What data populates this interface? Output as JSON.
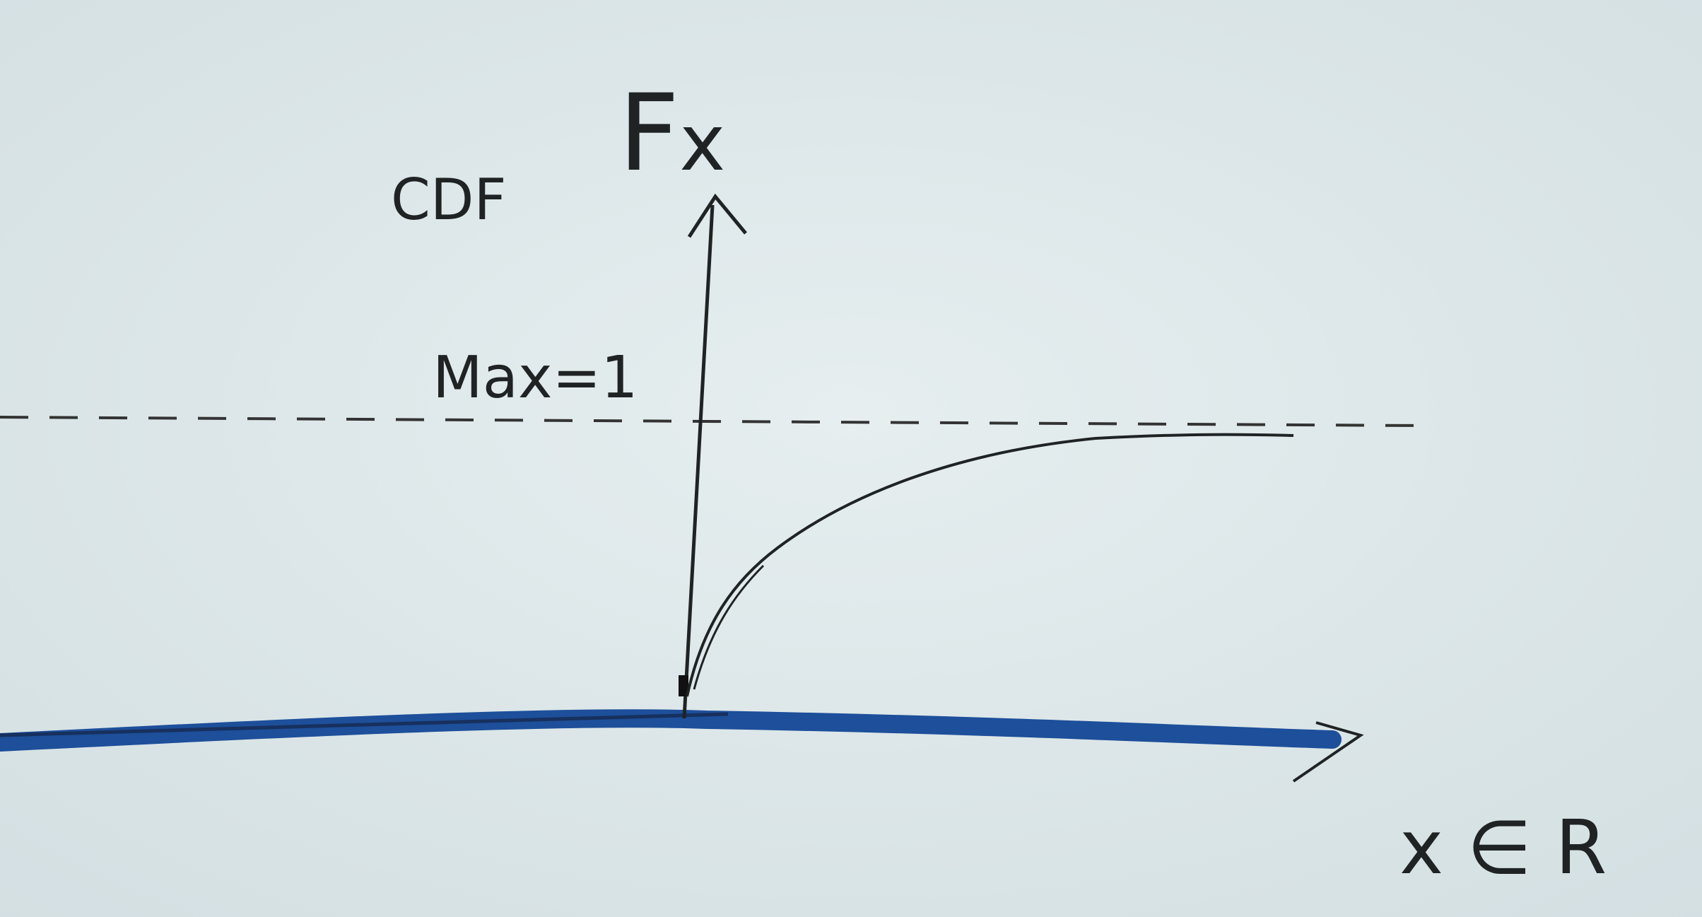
{
  "labels": {
    "cdf": "CDF",
    "function_main": "F",
    "function_sub": "x",
    "max": "Max=1",
    "domain": "x ∈ R"
  }
}
